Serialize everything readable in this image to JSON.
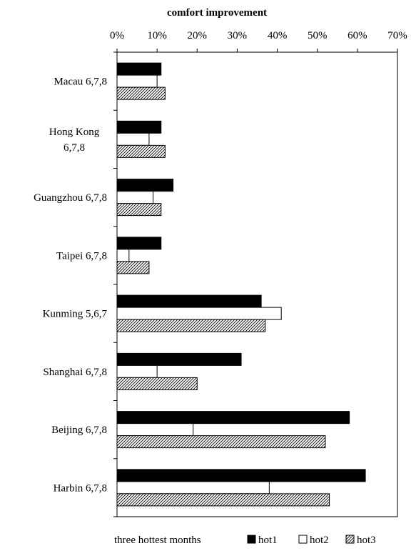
{
  "chart_data": {
    "type": "bar",
    "orientation": "horizontal",
    "title": "comfort improvement",
    "xaxis_position": "top",
    "xlim": [
      0,
      70
    ],
    "xticks": [
      "0%",
      "10%",
      "20%",
      "30%",
      "40%",
      "50%",
      "60%",
      "70%"
    ],
    "xtick_values": [
      0,
      10,
      20,
      30,
      40,
      50,
      60,
      70
    ],
    "categories": [
      [
        "Macau 6,7,8"
      ],
      [
        "Hong Kong",
        "6,7,8"
      ],
      [
        "Guangzhou 6,7,8"
      ],
      [
        "Taipei 6,7,8"
      ],
      [
        "Kunming 5,6,7"
      ],
      [
        "Shanghai 6,7,8"
      ],
      [
        "Beijing 6,7,8"
      ],
      [
        "Harbin 6,7,8"
      ]
    ],
    "series": [
      {
        "name": "hot1",
        "fill": "solid",
        "color": "#000000",
        "values": [
          11,
          11,
          14,
          11,
          36,
          31,
          58,
          62
        ]
      },
      {
        "name": "hot2",
        "fill": "open",
        "color": "#ffffff",
        "values": [
          10,
          8,
          9,
          3,
          41,
          10,
          19,
          38
        ]
      },
      {
        "name": "hot3",
        "fill": "hatched",
        "color": "#000000",
        "values": [
          12,
          12,
          11,
          8,
          37,
          20,
          52,
          53
        ]
      }
    ],
    "legend": {
      "position": "bottom",
      "prefix": "three hottest months",
      "entries": [
        "hot1",
        "hot2",
        "hot3"
      ]
    },
    "grid": false
  }
}
